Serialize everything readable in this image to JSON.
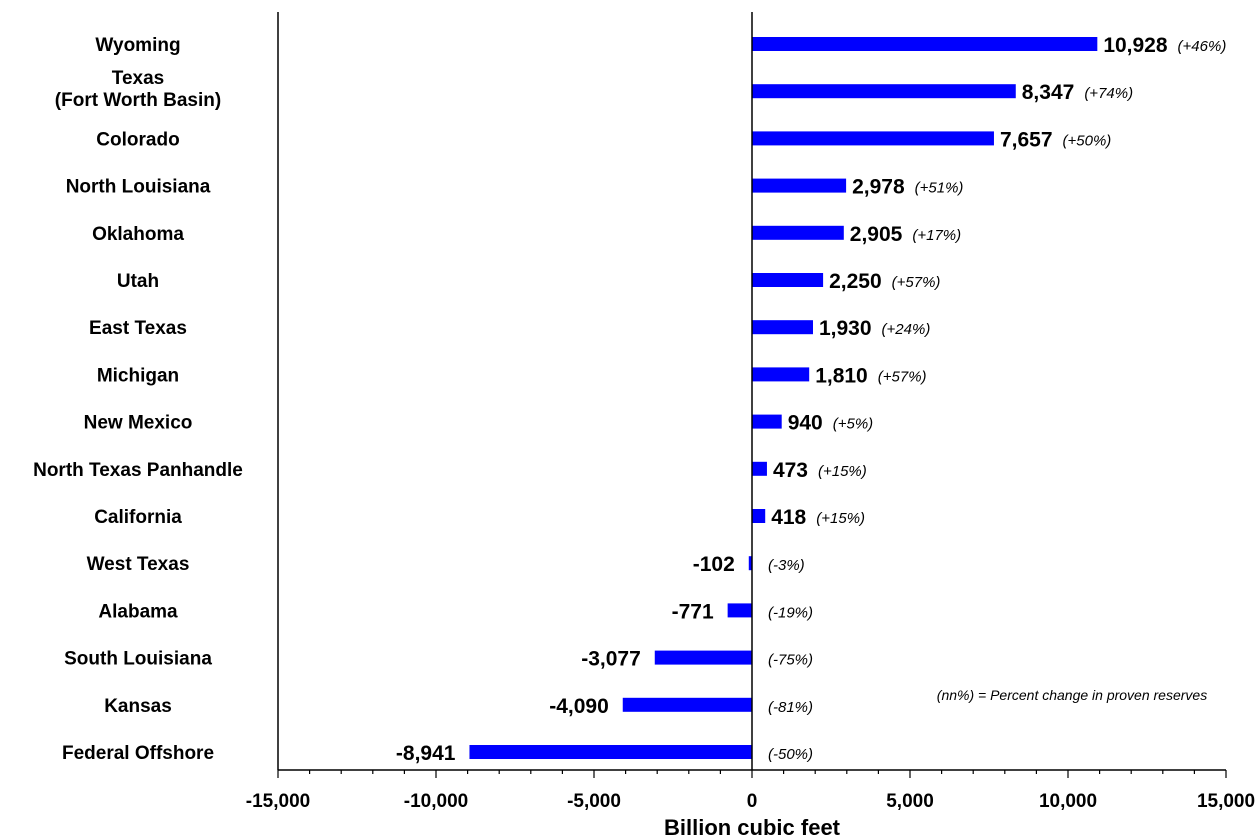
{
  "chart_data": {
    "type": "bar",
    "orientation": "horizontal",
    "categories": [
      [
        "Wyoming"
      ],
      [
        "Texas",
        "(Fort Worth Basin)"
      ],
      [
        "Colorado"
      ],
      [
        "North Louisiana"
      ],
      [
        "Oklahoma"
      ],
      [
        "Utah"
      ],
      [
        "East Texas"
      ],
      [
        "Michigan"
      ],
      [
        "New Mexico"
      ],
      [
        "North Texas Panhandle"
      ],
      [
        "California"
      ],
      [
        "West Texas"
      ],
      [
        "Alabama"
      ],
      [
        "South Louisiana"
      ],
      [
        "Kansas"
      ],
      [
        "Federal Offshore"
      ]
    ],
    "values": [
      10928,
      8347,
      7657,
      2978,
      2905,
      2250,
      1930,
      1810,
      940,
      473,
      418,
      -102,
      -771,
      -3077,
      -4090,
      -8941
    ],
    "value_labels": [
      "10,928",
      "8,347",
      "7,657",
      "2,978",
      "2,905",
      "2,250",
      "1,930",
      "1,810",
      "940",
      "473",
      "418",
      "-102",
      "-771",
      "-3,077",
      "-4,090",
      "-8,941"
    ],
    "percent_labels": [
      "(+46%)",
      "(+74%)",
      "(+50%)",
      "(+51%)",
      "(+17%)",
      "(+57%)",
      "(+24%)",
      "(+57%)",
      "(+5%)",
      "(+15%)",
      "(+15%)",
      "(-3%)",
      "(-19%)",
      "(-75%)",
      "(-81%)",
      "(-50%)"
    ],
    "xlabel": "Billion cubic feet",
    "xlim": [
      -15000,
      15000
    ],
    "xticks": [
      -15000,
      -10000,
      -5000,
      0,
      5000,
      10000,
      15000
    ],
    "xtick_labels": [
      "-15,000",
      "-10,000",
      "-5,000",
      "0",
      "5,000",
      "10,000",
      "15,000"
    ],
    "annotation": "(nn%) = Percent change in proven reserves",
    "bar_color": "#0000FF",
    "grid": false
  }
}
